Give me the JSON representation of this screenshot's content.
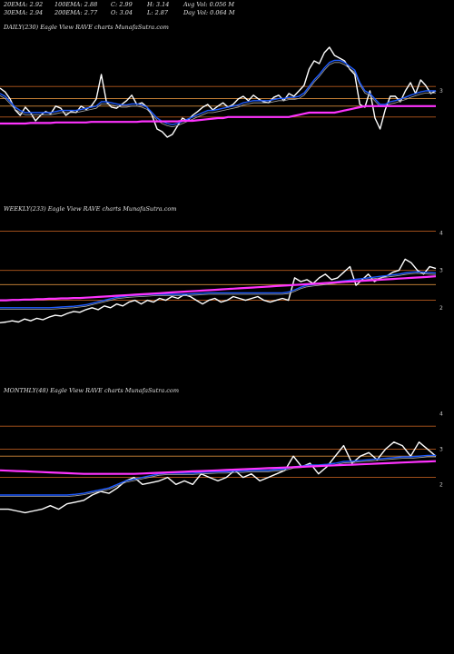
{
  "header": {
    "row1": [
      "20EMA: 2.92",
      "100EMA: 2.88",
      "C: 2.99",
      "H: 3.14",
      "Avg Vol: 0.056  M"
    ],
    "row2": [
      "30EMA: 2.94",
      "200EMA: 2.77",
      "O: 3.04",
      "L: 2.87",
      "Day Vol: 0.064 M"
    ]
  },
  "panels": {
    "daily": {
      "title": "DAILY(230) Eagle   View  RAVE charts MunafaSutra.com"
    },
    "weekly": {
      "title": "WEEKLY(233) Eagle   View  RAVE charts MunafaSutra.com"
    },
    "monthly": {
      "title": "MONTHLY(48) Eagle   View  RAVE charts MunafaSutra.com"
    }
  },
  "colors": {
    "background": "#000000",
    "price": "#ffffff",
    "ema_short": "#1e5bff",
    "ema_long": "#ff33ff",
    "ema_grey": "#aaaaaa",
    "ema_orange": "#d48a3a",
    "level_line": "#b55a1e"
  },
  "chart_data": [
    {
      "type": "line",
      "panel": "daily",
      "y_tick_labels": [
        "3"
      ],
      "series": [
        {
          "role": "price",
          "values": [
            3.05,
            2.98,
            2.85,
            2.65,
            2.55,
            2.7,
            2.6,
            2.45,
            2.55,
            2.62,
            2.58,
            2.72,
            2.68,
            2.55,
            2.62,
            2.6,
            2.72,
            2.66,
            2.72,
            2.85,
            3.3,
            2.8,
            2.7,
            2.68,
            2.75,
            2.82,
            2.92,
            2.75,
            2.78,
            2.7,
            2.55,
            2.3,
            2.25,
            2.15,
            2.2,
            2.35,
            2.5,
            2.45,
            2.55,
            2.62,
            2.7,
            2.75,
            2.65,
            2.72,
            2.78,
            2.7,
            2.75,
            2.85,
            2.9,
            2.82,
            2.92,
            2.85,
            2.8,
            2.78,
            2.88,
            2.92,
            2.82,
            2.95,
            2.9,
            3.0,
            3.1,
            3.4,
            3.55,
            3.5,
            3.7,
            3.8,
            3.65,
            3.6,
            3.55,
            3.4,
            3.3,
            2.75,
            2.7,
            3.0,
            2.5,
            2.3,
            2.65,
            2.9,
            2.9,
            2.8,
            3.0,
            3.15,
            2.95,
            3.2,
            3.1,
            2.95,
            3.0
          ]
        },
        {
          "role": "ema_short",
          "values": [
            2.95,
            2.9,
            2.8,
            2.7,
            2.64,
            2.6,
            2.6,
            2.6,
            2.6,
            2.6,
            2.6,
            2.62,
            2.64,
            2.64,
            2.64,
            2.64,
            2.66,
            2.68,
            2.7,
            2.72,
            2.8,
            2.8,
            2.78,
            2.76,
            2.74,
            2.74,
            2.76,
            2.76,
            2.74,
            2.7,
            2.6,
            2.5,
            2.44,
            2.4,
            2.38,
            2.4,
            2.44,
            2.48,
            2.52,
            2.56,
            2.6,
            2.64,
            2.64,
            2.66,
            2.68,
            2.7,
            2.72,
            2.74,
            2.78,
            2.8,
            2.82,
            2.82,
            2.82,
            2.82,
            2.84,
            2.86,
            2.86,
            2.88,
            2.88,
            2.9,
            2.96,
            3.08,
            3.2,
            3.3,
            3.42,
            3.52,
            3.56,
            3.56,
            3.52,
            3.45,
            3.38,
            3.15,
            3.0,
            2.95,
            2.85,
            2.75,
            2.75,
            2.8,
            2.82,
            2.85,
            2.88,
            2.92,
            2.95,
            2.98,
            3.0,
            3.0,
            3.0
          ]
        },
        {
          "role": "ema_long",
          "values": [
            2.4,
            2.4,
            2.4,
            2.4,
            2.4,
            2.4,
            2.41,
            2.41,
            2.41,
            2.41,
            2.41,
            2.42,
            2.42,
            2.42,
            2.42,
            2.42,
            2.42,
            2.42,
            2.43,
            2.43,
            2.43,
            2.43,
            2.43,
            2.43,
            2.43,
            2.43,
            2.43,
            2.43,
            2.44,
            2.44,
            2.44,
            2.44,
            2.44,
            2.44,
            2.44,
            2.44,
            2.45,
            2.45,
            2.45,
            2.46,
            2.47,
            2.48,
            2.49,
            2.5,
            2.5,
            2.52,
            2.52,
            2.52,
            2.52,
            2.52,
            2.52,
            2.52,
            2.52,
            2.52,
            2.52,
            2.52,
            2.52,
            2.52,
            2.54,
            2.56,
            2.58,
            2.6,
            2.6,
            2.6,
            2.6,
            2.6,
            2.6,
            2.62,
            2.64,
            2.66,
            2.68,
            2.7,
            2.72,
            2.72,
            2.72,
            2.72,
            2.72,
            2.72,
            2.72,
            2.72,
            2.72,
            2.72,
            2.72,
            2.72,
            2.72,
            2.72,
            2.72
          ]
        }
      ]
    },
    {
      "type": "line",
      "panel": "weekly",
      "y_tick_labels": [
        "4",
        "3",
        "2"
      ],
      "series": [
        {
          "role": "price",
          "values": [
            1.6,
            1.62,
            1.65,
            1.62,
            1.7,
            1.65,
            1.72,
            1.68,
            1.75,
            1.8,
            1.78,
            1.85,
            1.9,
            1.88,
            1.95,
            2.0,
            1.95,
            2.05,
            2.0,
            2.1,
            2.05,
            2.15,
            2.2,
            2.1,
            2.2,
            2.15,
            2.25,
            2.2,
            2.3,
            2.25,
            2.35,
            2.3,
            2.2,
            2.1,
            2.2,
            2.25,
            2.15,
            2.2,
            2.3,
            2.25,
            2.2,
            2.25,
            2.3,
            2.2,
            2.15,
            2.2,
            2.25,
            2.2,
            2.8,
            2.7,
            2.75,
            2.65,
            2.8,
            2.9,
            2.75,
            2.8,
            2.95,
            3.1,
            2.6,
            2.75,
            2.9,
            2.7,
            2.8,
            2.85,
            2.95,
            3.0,
            3.3,
            3.2,
            3.0,
            2.9,
            3.1,
            3.05
          ]
        },
        {
          "role": "ema_short",
          "values": [
            2.0,
            2.0,
            2.0,
            2.0,
            2.0,
            2.0,
            2.0,
            2.0,
            2.0,
            2.01,
            2.02,
            2.03,
            2.04,
            2.06,
            2.08,
            2.12,
            2.16,
            2.2,
            2.24,
            2.28,
            2.3,
            2.32,
            2.33,
            2.34,
            2.35,
            2.36,
            2.36,
            2.36,
            2.36,
            2.36,
            2.36,
            2.37,
            2.38,
            2.39,
            2.4,
            2.4,
            2.4,
            2.4,
            2.4,
            2.4,
            2.4,
            2.4,
            2.4,
            2.4,
            2.4,
            2.4,
            2.4,
            2.42,
            2.48,
            2.55,
            2.6,
            2.62,
            2.64,
            2.66,
            2.68,
            2.7,
            2.72,
            2.74,
            2.76,
            2.78,
            2.8,
            2.82,
            2.84,
            2.86,
            2.88,
            2.9,
            2.93,
            2.95,
            2.96,
            2.95,
            2.94,
            2.93
          ]
        },
        {
          "role": "ema_long",
          "values": [
            2.2,
            2.2,
            2.21,
            2.21,
            2.22,
            2.22,
            2.23,
            2.23,
            2.24,
            2.24,
            2.25,
            2.25,
            2.26,
            2.26,
            2.27,
            2.28,
            2.29,
            2.3,
            2.31,
            2.32,
            2.33,
            2.34,
            2.35,
            2.36,
            2.37,
            2.38,
            2.39,
            2.4,
            2.41,
            2.42,
            2.43,
            2.44,
            2.45,
            2.46,
            2.47,
            2.48,
            2.49,
            2.5,
            2.51,
            2.52,
            2.53,
            2.54,
            2.55,
            2.56,
            2.57,
            2.58,
            2.59,
            2.6,
            2.61,
            2.62,
            2.63,
            2.64,
            2.65,
            2.66,
            2.67,
            2.68,
            2.69,
            2.7,
            2.71,
            2.72,
            2.73,
            2.74,
            2.75,
            2.76,
            2.77,
            2.78,
            2.79,
            2.8,
            2.81,
            2.82,
            2.83,
            2.84
          ]
        }
      ]
    },
    {
      "type": "line",
      "panel": "monthly",
      "y_tick_labels": [
        "4",
        "3",
        "2"
      ],
      "series": [
        {
          "role": "price",
          "values": [
            1.3,
            1.3,
            1.25,
            1.2,
            1.25,
            1.3,
            1.4,
            1.3,
            1.45,
            1.5,
            1.55,
            1.7,
            1.8,
            1.75,
            1.9,
            2.1,
            2.2,
            2.0,
            2.05,
            2.1,
            2.2,
            2.0,
            2.1,
            2.0,
            2.3,
            2.2,
            2.1,
            2.2,
            2.4,
            2.2,
            2.3,
            2.1,
            2.2,
            2.3,
            2.4,
            2.8,
            2.5,
            2.6,
            2.3,
            2.5,
            2.8,
            3.1,
            2.6,
            2.8,
            2.9,
            2.7,
            3.0,
            3.2,
            3.1,
            2.8,
            3.2,
            3.0,
            2.8
          ]
        },
        {
          "role": "ema_short",
          "values": [
            1.7,
            1.7,
            1.7,
            1.7,
            1.7,
            1.7,
            1.7,
            1.7,
            1.7,
            1.72,
            1.75,
            1.8,
            1.85,
            1.9,
            2.0,
            2.1,
            2.15,
            2.2,
            2.25,
            2.3,
            2.32,
            2.32,
            2.32,
            2.32,
            2.34,
            2.35,
            2.36,
            2.36,
            2.38,
            2.38,
            2.4,
            2.4,
            2.4,
            2.42,
            2.44,
            2.5,
            2.52,
            2.55,
            2.55,
            2.57,
            2.6,
            2.65,
            2.66,
            2.68,
            2.7,
            2.72,
            2.74,
            2.76,
            2.78,
            2.78,
            2.8,
            2.82,
            2.82
          ]
        },
        {
          "role": "ema_long",
          "values": [
            2.4,
            2.39,
            2.38,
            2.37,
            2.36,
            2.35,
            2.34,
            2.33,
            2.32,
            2.31,
            2.3,
            2.3,
            2.3,
            2.3,
            2.3,
            2.3,
            2.3,
            2.31,
            2.32,
            2.33,
            2.34,
            2.35,
            2.36,
            2.37,
            2.38,
            2.39,
            2.4,
            2.41,
            2.42,
            2.43,
            2.44,
            2.45,
            2.46,
            2.47,
            2.48,
            2.49,
            2.5,
            2.51,
            2.52,
            2.53,
            2.54,
            2.55,
            2.56,
            2.57,
            2.58,
            2.59,
            2.6,
            2.61,
            2.62,
            2.63,
            2.64,
            2.65,
            2.66
          ]
        }
      ]
    }
  ]
}
